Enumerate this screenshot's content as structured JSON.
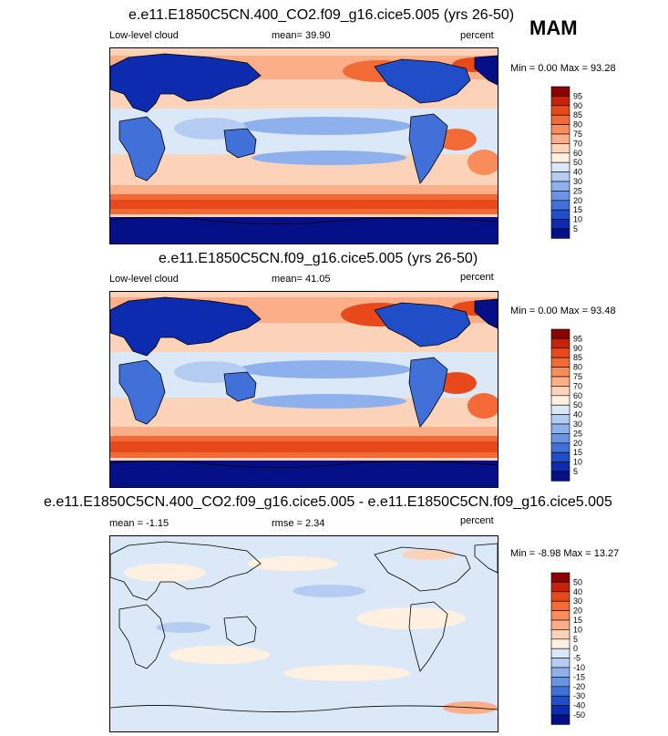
{
  "season": "MAM",
  "panels": [
    {
      "title": "e.e11.E1850C5CN.400_CO2.f09_g16.cice5.005 (yrs 26-50)",
      "left_label": "Low-level cloud",
      "center_label": "mean=  39.90",
      "right_label": "percent",
      "minmax": "Min =   0.00 Max = 93.28",
      "field": "low-level cloud fraction (CO2 run)"
    },
    {
      "title": "e.e11.E1850C5CN.f09_g16.cice5.005 (yrs 26-50)",
      "left_label": "Low-level cloud",
      "center_label": "mean=  41.05",
      "right_label": "percent",
      "minmax": "Min =   0.00 Max =  93.48",
      "field": "low-level cloud fraction (control run)"
    },
    {
      "title": "e.e11.E1850C5CN.400_CO2.f09_g16.cice5.005 - e.e11.E1850C5CN.f09_g16.cice5.005",
      "left_label": "mean =  -1.15",
      "center_label": "rmse =   2.34",
      "right_label": "percent",
      "minmax": "Min =  -8.98 Max = 13.27",
      "field": "difference"
    }
  ],
  "colorbars": {
    "absolute": {
      "labels": [
        "95",
        "90",
        "85",
        "80",
        "75",
        "70",
        "60",
        "50",
        "40",
        "30",
        "25",
        "20",
        "15",
        "10",
        "5"
      ],
      "colors": [
        "#8b0000",
        "#c4220a",
        "#e8491a",
        "#f26a35",
        "#f88c5b",
        "#fbae88",
        "#fcd2b8",
        "#fff0e2",
        "#dbe8f8",
        "#b5cdf2",
        "#8eb0ec",
        "#6a93e4",
        "#4170d8",
        "#1f4ec8",
        "#0c2bae",
        "#050f87"
      ]
    },
    "difference": {
      "labels": [
        "50",
        "40",
        "30",
        "20",
        "15",
        "10",
        "5",
        "0",
        "-5",
        "-10",
        "-15",
        "-20",
        "-30",
        "-40",
        "-50"
      ],
      "colors": [
        "#8b0000",
        "#c4220a",
        "#e8491a",
        "#f26a35",
        "#f88c5b",
        "#fbae88",
        "#fcd2b8",
        "#fff0e2",
        "#dbe8f8",
        "#b5cdf2",
        "#8eb0ec",
        "#6a93e4",
        "#4170d8",
        "#1f4ec8",
        "#0c2bae",
        "#050f87"
      ]
    }
  }
}
